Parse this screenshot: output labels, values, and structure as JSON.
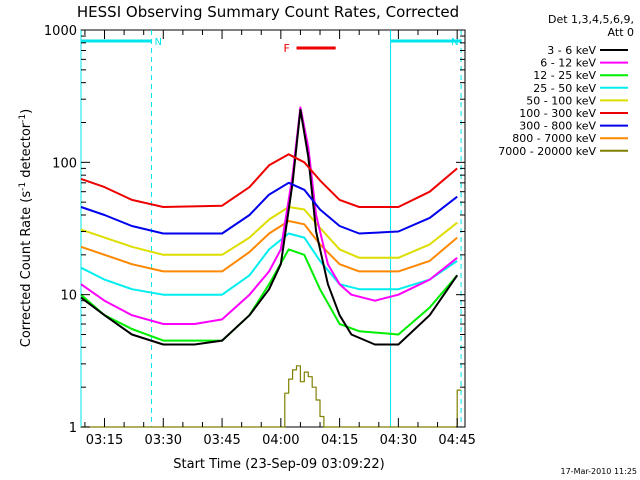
{
  "chart_data": {
    "type": "line",
    "title": "HESSI Observing Summary Count Rates, Corrected",
    "ylabel": "Corrected Count Rate (s⁻¹ detector⁻¹)",
    "ylabel_parts": [
      "Corrected Count Rate (s",
      "-1",
      " detector",
      "-1",
      ")"
    ],
    "xlabel": "Start Time (23-Sep-09 03:09:22)",
    "footer": "17-Mar-2010 11:25",
    "y_scale": "log",
    "ylim": [
      1,
      1000
    ],
    "xlim": [
      "03:09",
      "04:47"
    ],
    "x_ticks": [
      "03:15",
      "03:30",
      "03:45",
      "04:00",
      "04:15",
      "04:30",
      "04:45"
    ],
    "y_ticks": [
      "1",
      "10",
      "100",
      "1000"
    ],
    "legend_header": [
      "Det 1,3,4,5,6,9,",
      "Att 0"
    ],
    "legend_placement": "right",
    "annotations": {
      "night_marks": [
        "N",
        "N"
      ],
      "flare_mark": "F",
      "night_color": "#00e5ee",
      "flare_color": "#ee0000",
      "night_intervals": [
        [
          "03:09",
          "03:27"
        ],
        [
          "04:28",
          "04:46"
        ]
      ],
      "flare_interval": [
        "04:04",
        "04:14"
      ]
    },
    "series": [
      {
        "name": "3 - 6 keV",
        "color": "#000000",
        "x": [
          "03:09",
          "03:15",
          "03:22",
          "03:30",
          "03:38",
          "03:45",
          "03:52",
          "03:57",
          "04:00",
          "04:03",
          "04:05",
          "04:07",
          "04:09",
          "04:12",
          "04:15",
          "04:18",
          "04:24",
          "04:30",
          "04:38",
          "04:45"
        ],
        "y": [
          9.5,
          7,
          5,
          4.2,
          4.2,
          4.5,
          7,
          11,
          17,
          70,
          250,
          110,
          30,
          12,
          7,
          5,
          4.2,
          4.2,
          7,
          14
        ]
      },
      {
        "name": "6 - 12 keV",
        "color": "#ff00ff",
        "x": [
          "03:09",
          "03:15",
          "03:22",
          "03:30",
          "03:38",
          "03:45",
          "03:52",
          "03:57",
          "04:00",
          "04:03",
          "04:05",
          "04:07",
          "04:09",
          "04:12",
          "04:15",
          "04:18",
          "04:24",
          "04:30",
          "04:38",
          "04:45"
        ],
        "y": [
          12,
          9,
          7,
          6,
          6,
          6.5,
          10,
          15,
          22,
          80,
          260,
          130,
          40,
          17,
          12,
          10,
          9,
          10,
          13,
          19
        ]
      },
      {
        "name": "12 - 25 keV",
        "color": "#00ee00",
        "x": [
          "03:09",
          "03:15",
          "03:22",
          "03:30",
          "03:45",
          "03:52",
          "03:57",
          "04:02",
          "04:06",
          "04:10",
          "04:15",
          "04:20",
          "04:30",
          "04:38",
          "04:45"
        ],
        "y": [
          10,
          7,
          5.5,
          4.5,
          4.5,
          7,
          12,
          22,
          20,
          11,
          6,
          5.3,
          5,
          8,
          14
        ]
      },
      {
        "name": "25 - 50 keV",
        "color": "#00eeee",
        "x": [
          "03:09",
          "03:15",
          "03:22",
          "03:30",
          "03:45",
          "03:52",
          "03:57",
          "04:02",
          "04:06",
          "04:10",
          "04:15",
          "04:20",
          "04:30",
          "04:38",
          "04:45"
        ],
        "y": [
          16,
          13,
          11,
          10,
          10,
          14,
          22,
          29,
          27,
          18,
          12,
          11,
          11,
          13,
          18
        ]
      },
      {
        "name": "50 - 100 keV",
        "color": "#dddd00",
        "x": [
          "03:09",
          "03:15",
          "03:22",
          "03:30",
          "03:45",
          "03:52",
          "03:57",
          "04:02",
          "04:06",
          "04:10",
          "04:15",
          "04:20",
          "04:30",
          "04:38",
          "04:45"
        ],
        "y": [
          31,
          27,
          23,
          20,
          20,
          27,
          37,
          46,
          44,
          32,
          22,
          19,
          19,
          24,
          35
        ]
      },
      {
        "name": "100 - 300 keV",
        "color": "#ee0000",
        "x": [
          "03:09",
          "03:15",
          "03:22",
          "03:30",
          "03:45",
          "03:52",
          "03:57",
          "04:02",
          "04:06",
          "04:10",
          "04:15",
          "04:20",
          "04:30",
          "04:38",
          "04:45"
        ],
        "y": [
          75,
          65,
          52,
          46,
          47,
          65,
          95,
          115,
          100,
          73,
          52,
          46,
          46,
          60,
          90
        ]
      },
      {
        "name": "300 - 800 keV",
        "color": "#0000ee",
        "x": [
          "03:09",
          "03:15",
          "03:22",
          "03:30",
          "03:45",
          "03:52",
          "03:57",
          "04:02",
          "04:06",
          "04:10",
          "04:15",
          "04:20",
          "04:30",
          "04:38",
          "04:45"
        ],
        "y": [
          46,
          40,
          33,
          29,
          29,
          40,
          57,
          70,
          62,
          44,
          33,
          29,
          30,
          38,
          55
        ]
      },
      {
        "name": "800 - 7000 keV",
        "color": "#ff8800",
        "x": [
          "03:09",
          "03:15",
          "03:22",
          "03:30",
          "03:45",
          "03:52",
          "03:57",
          "04:02",
          "04:06",
          "04:10",
          "04:15",
          "04:20",
          "04:30",
          "04:38",
          "04:45"
        ],
        "y": [
          23,
          20,
          17,
          15,
          15,
          21,
          29,
          36,
          34,
          24,
          17,
          15,
          15,
          18,
          27
        ]
      },
      {
        "name": "7000 - 20000 keV",
        "color": "#808000",
        "x": [
          "03:09",
          "04:00",
          "04:01",
          "04:02",
          "04:03",
          "04:04",
          "04:05",
          "04:06",
          "04:07",
          "04:08",
          "04:09",
          "04:10",
          "04:11",
          "04:12",
          "04:44",
          "04:45",
          "04:46"
        ],
        "y": [
          1,
          1,
          1.8,
          2.3,
          2.7,
          2.9,
          2.2,
          2.6,
          2.4,
          2.0,
          1.6,
          1.2,
          1,
          1,
          1,
          1.9,
          1.9
        ]
      }
    ]
  }
}
